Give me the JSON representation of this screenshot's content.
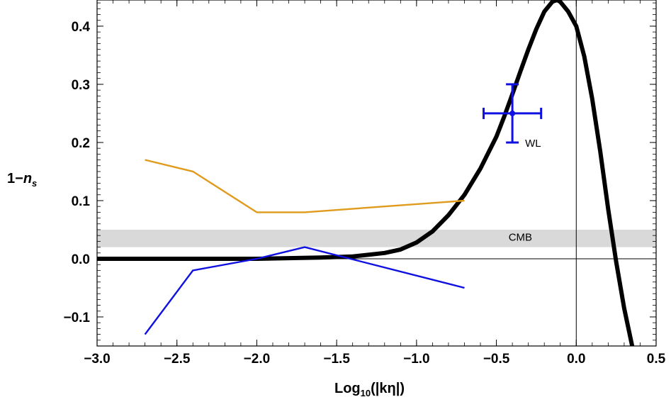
{
  "chart_data": {
    "type": "line",
    "title": "",
    "xlabel": {
      "main": "Log",
      "sub": "10",
      "rest": "(|kη|)"
    },
    "ylabel": {
      "main": "1−",
      "italic": "n",
      "sub": "s"
    },
    "xlim": [
      -3.0,
      0.5
    ],
    "ylim": [
      -0.15,
      0.445
    ],
    "x_ticks": [
      -3.0,
      -2.5,
      -2.0,
      -1.5,
      -1.0,
      -0.5,
      0.0,
      0.5
    ],
    "x_tick_labels": [
      "−3.0",
      "−2.5",
      "−2.0",
      "−1.5",
      "−1.0",
      "−0.5",
      "0.0",
      "0.5"
    ],
    "y_ticks": [
      -0.1,
      0.0,
      0.1,
      0.2,
      0.3,
      0.4
    ],
    "y_tick_labels": [
      "−0.1",
      "0.0",
      "0.1",
      "0.2",
      "0.3",
      "0.4"
    ],
    "grid": false,
    "frame": true,
    "reference_lines": {
      "x": 0.0,
      "y": 0.0
    },
    "band": {
      "label": "CMB",
      "y_min": 0.02,
      "y_max": 0.05,
      "label_x": -0.35,
      "label_y": 0.037,
      "color": "#d9d9d9"
    },
    "series": [
      {
        "style": "thick",
        "color": "#000000",
        "x": [
          -3.0,
          -2.0,
          -1.6,
          -1.4,
          -1.2,
          -1.1,
          -1.0,
          -0.9,
          -0.8,
          -0.7,
          -0.6,
          -0.5,
          -0.45,
          -0.4,
          -0.35,
          -0.3,
          -0.25,
          -0.2,
          -0.15,
          -0.12,
          -0.1,
          -0.05,
          0.0,
          0.05,
          0.1,
          0.15,
          0.2,
          0.25,
          0.3,
          0.35
        ],
        "y": [
          0.0,
          0.0,
          0.002,
          0.004,
          0.01,
          0.016,
          0.028,
          0.047,
          0.075,
          0.11,
          0.155,
          0.21,
          0.245,
          0.283,
          0.322,
          0.36,
          0.395,
          0.425,
          0.442,
          0.445,
          0.442,
          0.425,
          0.4,
          0.348,
          0.275,
          0.185,
          0.085,
          -0.005,
          -0.085,
          -0.15
        ]
      },
      {
        "style": "thin",
        "color": "#e09a1c",
        "x": [
          -2.7,
          -2.4,
          -2.0,
          -1.7,
          -0.7
        ],
        "y": [
          0.17,
          0.15,
          0.08,
          0.08,
          0.1
        ]
      },
      {
        "style": "thin",
        "color": "#1010e0",
        "x": [
          -2.7,
          -2.4,
          -2.0,
          -1.7,
          -0.7
        ],
        "y": [
          -0.13,
          -0.02,
          0.0,
          0.02,
          -0.05
        ]
      }
    ],
    "error_points": [
      {
        "label": "WL",
        "x": -0.4,
        "y": 0.25,
        "x_err": 0.18,
        "y_err": 0.05,
        "color": "#1010e0",
        "label_x": -0.32,
        "label_y": 0.2
      }
    ]
  }
}
